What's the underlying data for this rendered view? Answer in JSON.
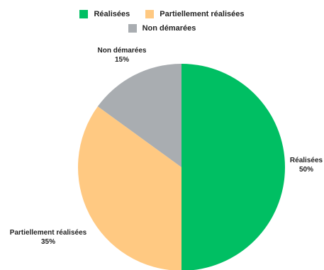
{
  "chart_data": {
    "type": "pie",
    "slices": [
      {
        "label": "Réalisées",
        "value": 50,
        "value_label": "50%",
        "color": "#00BF63"
      },
      {
        "label": "Partiellement réalisées",
        "value": 35,
        "value_label": "35%",
        "color": "#FFC982"
      },
      {
        "label": "Non démarées",
        "value": 15,
        "value_label": "15%",
        "color": "#A9ADB1"
      }
    ],
    "legend": {
      "placement": "top",
      "entries": [
        "Réalisées",
        "Partiellement réalisées",
        "Non démarées"
      ]
    },
    "start_angle": "top",
    "direction": "clockwise"
  }
}
